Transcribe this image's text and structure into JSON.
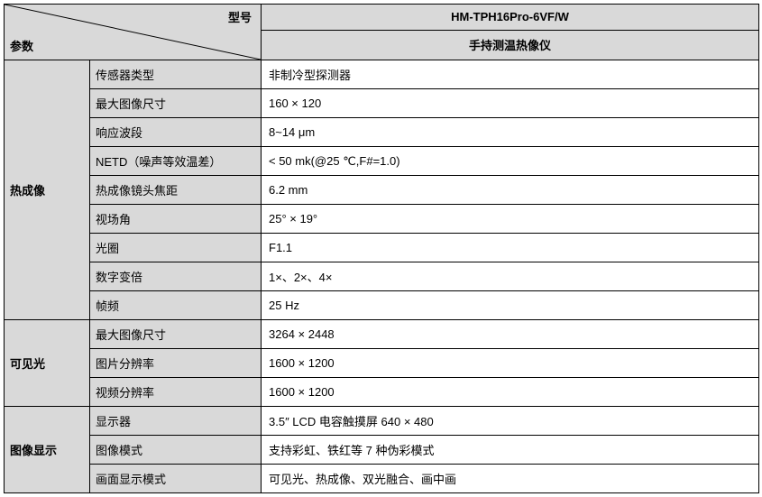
{
  "header": {
    "corner_top": "型号",
    "corner_bottom": "参数",
    "model": "HM-TPH16Pro-6VF/W",
    "description": "手持测温热像仪"
  },
  "colors": {
    "header_bg": "#d9d9d9",
    "value_bg": "#ffffff",
    "border": "#000000"
  },
  "sections": [
    {
      "category": "热成像",
      "rows": [
        {
          "param": "传感器类型",
          "value": "非制冷型探测器"
        },
        {
          "param": "最大图像尺寸",
          "value": "160 × 120"
        },
        {
          "param": "响应波段",
          "value": "8~14 μm"
        },
        {
          "param": "NETD（噪声等效温差）",
          "value": "< 50 mk(@25 ℃,F#=1.0)"
        },
        {
          "param": "热成像镜头焦距",
          "value": "6.2 mm"
        },
        {
          "param": "视场角",
          "value": "25° × 19°"
        },
        {
          "param": "光圈",
          "value": "F1.1"
        },
        {
          "param": "数字变倍",
          "value": "1×、2×、4×"
        },
        {
          "param": "帧频",
          "value": "25 Hz"
        }
      ]
    },
    {
      "category": "可见光",
      "rows": [
        {
          "param": "最大图像尺寸",
          "value": "3264 × 2448"
        },
        {
          "param": "图片分辨率",
          "value": "1600 × 1200"
        },
        {
          "param": "视频分辨率",
          "value": "1600 × 1200"
        }
      ]
    },
    {
      "category": "图像显示",
      "rows": [
        {
          "param": "显示器",
          "value": "3.5″ LCD 电容触摸屏  640 × 480"
        },
        {
          "param": "图像模式",
          "value": "支持彩虹、铁红等 7 种伪彩模式"
        },
        {
          "param": "画面显示模式",
          "value": "可见光、热成像、双光融合、画中画"
        }
      ]
    }
  ]
}
